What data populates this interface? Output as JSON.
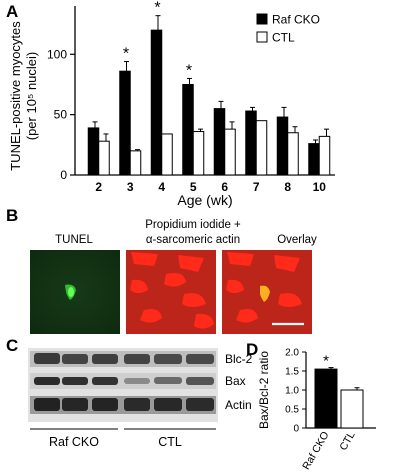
{
  "panels": {
    "a": "A",
    "b": "B",
    "c": "C",
    "d": "D"
  },
  "chart_data": [
    {
      "type": "bar",
      "panel": "A",
      "xlabel": "Age (wk)",
      "ylabel_line1": "TUNEL-positive myocytes",
      "ylabel_line2": "(per 10⁵ nuclei)",
      "categories": [
        "2",
        "3",
        "4",
        "5",
        "6",
        "7",
        "8",
        "10"
      ],
      "ylim": [
        0,
        140
      ],
      "yticks": [
        0,
        50,
        100
      ],
      "legend_position": "top-right",
      "series": [
        {
          "name": "Raf CKO",
          "color": "#000000",
          "values": [
            39,
            86,
            120,
            75,
            55,
            53,
            48,
            26
          ],
          "errors": [
            5,
            8,
            12,
            5,
            6,
            3,
            8,
            3
          ]
        },
        {
          "name": "CTL",
          "color": "#ffffff",
          "values": [
            28,
            20,
            34,
            36,
            38,
            45,
            35,
            32
          ],
          "errors": [
            6,
            1,
            0,
            2,
            6,
            0,
            5,
            6
          ]
        }
      ],
      "significance": {
        "marker": "*",
        "categories": [
          "3",
          "4",
          "5"
        ]
      }
    },
    {
      "type": "bar",
      "panel": "D",
      "ylabel": "Bax/Bcl-2 ratio",
      "categories": [
        "Raf CKO",
        "CTL"
      ],
      "values": [
        1.55,
        1.0
      ],
      "errors": [
        0.04,
        0.06
      ],
      "colors": [
        "#000000",
        "#ffffff"
      ],
      "ylim": [
        0,
        2.0
      ],
      "yticks": [
        "0",
        "0.5",
        "1.0",
        "1.5",
        "2.0"
      ],
      "significance": {
        "marker": "*",
        "category": "Raf CKO"
      }
    }
  ],
  "panel_b": {
    "titles": [
      "TUNEL",
      "Propidium iodide +",
      "α-sarcomeric actin",
      "Overlay"
    ]
  },
  "panel_c": {
    "bands": [
      "Blc-2",
      "Bax",
      "Actin"
    ],
    "groups": [
      "Raf CKO",
      "CTL"
    ]
  }
}
